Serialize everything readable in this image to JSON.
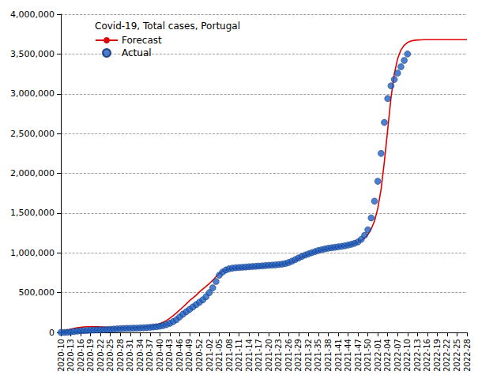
{
  "chart_data": {
    "type": "line",
    "title": "Covid-19, Total cases, Portugal",
    "legend": "top-left",
    "grid": true,
    "categories": [
      "2020-10",
      null,
      null,
      "2020-13",
      null,
      null,
      "2020-16",
      null,
      null,
      "2020-19",
      null,
      null,
      "2020-22",
      null,
      null,
      "2020-25",
      null,
      null,
      "2020-28",
      null,
      null,
      "2020-31",
      null,
      null,
      "2020-34",
      null,
      null,
      "2020-37",
      null,
      null,
      "2020-40",
      null,
      null,
      "2020-43",
      null,
      null,
      "2020-46",
      null,
      null,
      "2020-49",
      null,
      null,
      "2020-52",
      null,
      null,
      "2021-02",
      null,
      null,
      "2021-05",
      null,
      null,
      "2021-08",
      null,
      null,
      "2021-11",
      null,
      null,
      "2021-14",
      null,
      null,
      "2021-17",
      null,
      null,
      "2021-20",
      null,
      null,
      "2021-23",
      null,
      null,
      "2021-26",
      null,
      null,
      "2021-29",
      null,
      null,
      "2021-32",
      null,
      null,
      "2021-35",
      null,
      null,
      "2021-38",
      null,
      null,
      "2021-41",
      null,
      null,
      "2021-44",
      null,
      null,
      "2021-47",
      null,
      null,
      "2021-50",
      null,
      null,
      "2022-01",
      null,
      null,
      "2022-04",
      null,
      null,
      "2022-07",
      null,
      null,
      "2022-10",
      null,
      null,
      "2022-13",
      null,
      null,
      "2022-16",
      null,
      null,
      "2022-19",
      null,
      null,
      "2022-22",
      null,
      null,
      "2022-25",
      null,
      null,
      "2022-28"
    ],
    "ylim": [
      0,
      4000000
    ],
    "yticks": [
      0,
      {
        "value": 500000,
        "label": "500,000"
      },
      {
        "value": 1000000,
        "label": "1,000,000"
      },
      {
        "value": 1500000,
        "label": "1,500,000"
      },
      {
        "value": 2000000,
        "label": "2,000,000"
      },
      {
        "value": 2500000,
        "label": "2,500,000"
      },
      {
        "value": 3000000,
        "label": "3,000,000"
      },
      {
        "value": 3500000,
        "label": "3,500,000"
      },
      {
        "value": 4000000,
        "label": "4,000,000"
      }
    ],
    "series": [
      {
        "name": "Forecast",
        "type": "line",
        "color": "#e00000",
        "line_style": "solid",
        "values": [
          10000,
          20000,
          30000,
          40000,
          50000,
          58000,
          65000,
          70000,
          72000,
          72000,
          72000,
          71000,
          70000,
          66000,
          62000,
          58000,
          56000,
          56000,
          57000,
          58000,
          59000,
          60000,
          61000,
          63000,
          65000,
          68000,
          72000,
          78000,
          86000,
          97000,
          110000,
          128000,
          150000,
          178000,
          210000,
          245000,
          282000,
          320000,
          358000,
          400000,
          432000,
          468000,
          510000,
          545000,
          580000,
          615000,
          655000,
          700000,
          740000,
          770000,
          785000,
          792000,
          797000,
          800000,
          803000,
          806000,
          809000,
          812000,
          815000,
          818000,
          821000,
          824000,
          828000,
          832000,
          836000,
          840000,
          845000,
          851000,
          859000,
          870000,
          886000,
          905000,
          925000,
          945000,
          962000,
          978000,
          993000,
          1007000,
          1020000,
          1032000,
          1043000,
          1052000,
          1060000,
          1067000,
          1074000,
          1081000,
          1089000,
          1098000,
          1108000,
          1120000,
          1136000,
          1158000,
          1188000,
          1230000,
          1300000,
          1400000,
          1560000,
          1800000,
          2150000,
          2550000,
          2950000,
          3250000,
          3440000,
          3550000,
          3610000,
          3645000,
          3662000,
          3671000,
          3676000,
          3678000,
          3680000,
          3680000,
          3680000,
          3680000,
          3680000,
          3680000,
          3680000,
          3680000,
          3680000,
          3680000,
          3680000,
          3680000,
          3680000,
          3680000
        ]
      },
      {
        "name": "Actual",
        "type": "scatter",
        "color": "#1f5fc0",
        "marker": "circle",
        "values": [
          0,
          200,
          2000,
          6000,
          11000,
          16000,
          20000,
          23000,
          25000,
          27000,
          29000,
          31000,
          33000,
          35000,
          37000,
          39000,
          42000,
          45000,
          47000,
          49000,
          51000,
          52000,
          53000,
          54000,
          56000,
          58000,
          61000,
          64000,
          68000,
          72000,
          78000,
          86000,
          98000,
          115000,
          135000,
          160000,
          195000,
          230000,
          260000,
          290000,
          320000,
          350000,
          380000,
          410000,
          450000,
          500000,
          560000,
          640000,
          720000,
          760000,
          785000,
          800000,
          808000,
          813000,
          816000,
          819000,
          822000,
          825000,
          828000,
          831000,
          834000,
          837000,
          840000,
          843000,
          846000,
          849000,
          853000,
          858000,
          866000,
          878000,
          895000,
          915000,
          935000,
          955000,
          972000,
          988000,
          1002000,
          1016000,
          1030000,
          1040000,
          1050000,
          1058000,
          1064000,
          1070000,
          1076000,
          1082000,
          1090000,
          1098000,
          1108000,
          1120000,
          1138000,
          1170000,
          1220000,
          1290000,
          1440000,
          1650000,
          1900000,
          2250000,
          2640000,
          2940000,
          3100000,
          3180000,
          3260000,
          3340000,
          3420000,
          3500000,
          null,
          null,
          null,
          null,
          null,
          null,
          null,
          null,
          null,
          null,
          null,
          null,
          null,
          null,
          null,
          null,
          null,
          null
        ]
      }
    ]
  }
}
